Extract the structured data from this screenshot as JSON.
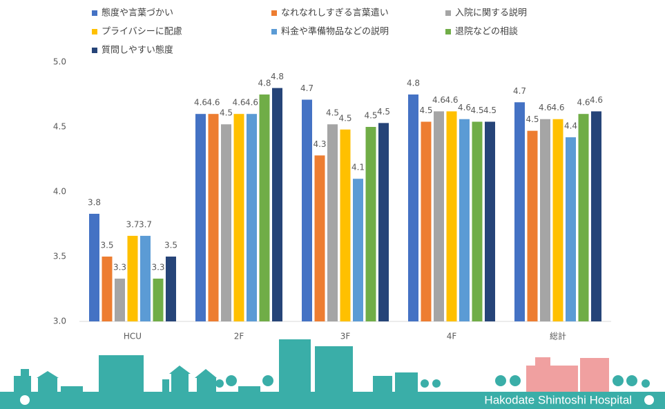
{
  "chart_data": {
    "type": "bar",
    "categories": [
      "HCU",
      "2F",
      "3F",
      "4F",
      "総計"
    ],
    "series": [
      {
        "name": "態度や言葉づかい",
        "color": "#4472c4",
        "values": [
          3.83,
          4.6,
          4.71,
          4.75,
          4.69
        ],
        "value_labels": [
          "3.8",
          "4.6",
          "4.7",
          "4.8",
          "4.7"
        ]
      },
      {
        "name": "なれなれしすぎる言葉遣い",
        "color": "#ed7d31",
        "values": [
          3.5,
          4.6,
          4.28,
          4.54,
          4.47
        ],
        "value_labels": [
          "3.5",
          "4.6",
          "4.3",
          "4.5",
          "4.5"
        ]
      },
      {
        "name": "入院に関する説明",
        "color": "#a5a5a5",
        "values": [
          3.33,
          4.52,
          4.52,
          4.62,
          4.56
        ],
        "value_labels": [
          "3.3",
          "4.5",
          "4.5",
          "4.6",
          "4.6"
        ]
      },
      {
        "name": "プライバシーに配慮",
        "color": "#ffc000",
        "values": [
          3.66,
          4.6,
          4.48,
          4.62,
          4.56
        ],
        "value_labels": [
          "3.7",
          "4.6",
          "4.5",
          "4.6",
          "4.6"
        ]
      },
      {
        "name": "料金や準備物品などの説明",
        "color": "#5b9bd5",
        "values": [
          3.66,
          4.6,
          4.1,
          4.56,
          4.42
        ],
        "value_labels": [
          "3.7",
          "4.6",
          "4.1",
          "4.6",
          "4.4"
        ]
      },
      {
        "name": "退院などの相談",
        "color": "#70ad47",
        "values": [
          3.33,
          4.75,
          4.5,
          4.54,
          4.6
        ],
        "value_labels": [
          "3.3",
          "4.8",
          "4.5",
          "4.5",
          "4.6"
        ]
      },
      {
        "name": "質問しやすい態度",
        "color": "#264478",
        "values": [
          3.5,
          4.8,
          4.53,
          4.54,
          4.62
        ],
        "value_labels": [
          "3.5",
          "4.8",
          "4.5",
          "4.5",
          "4.6"
        ]
      }
    ],
    "ylim": [
      3,
      5
    ],
    "yticks": [
      {
        "value": 3,
        "label": "3.0"
      },
      {
        "value": 3.5,
        "label": "3.5"
      },
      {
        "value": 4,
        "label": "4.0"
      },
      {
        "value": 4.5,
        "label": "4.5"
      },
      {
        "value": 5,
        "label": "5.0"
      }
    ],
    "legend": "top"
  },
  "footer": {
    "text": "Hakodate Shintoshi Hospital"
  }
}
